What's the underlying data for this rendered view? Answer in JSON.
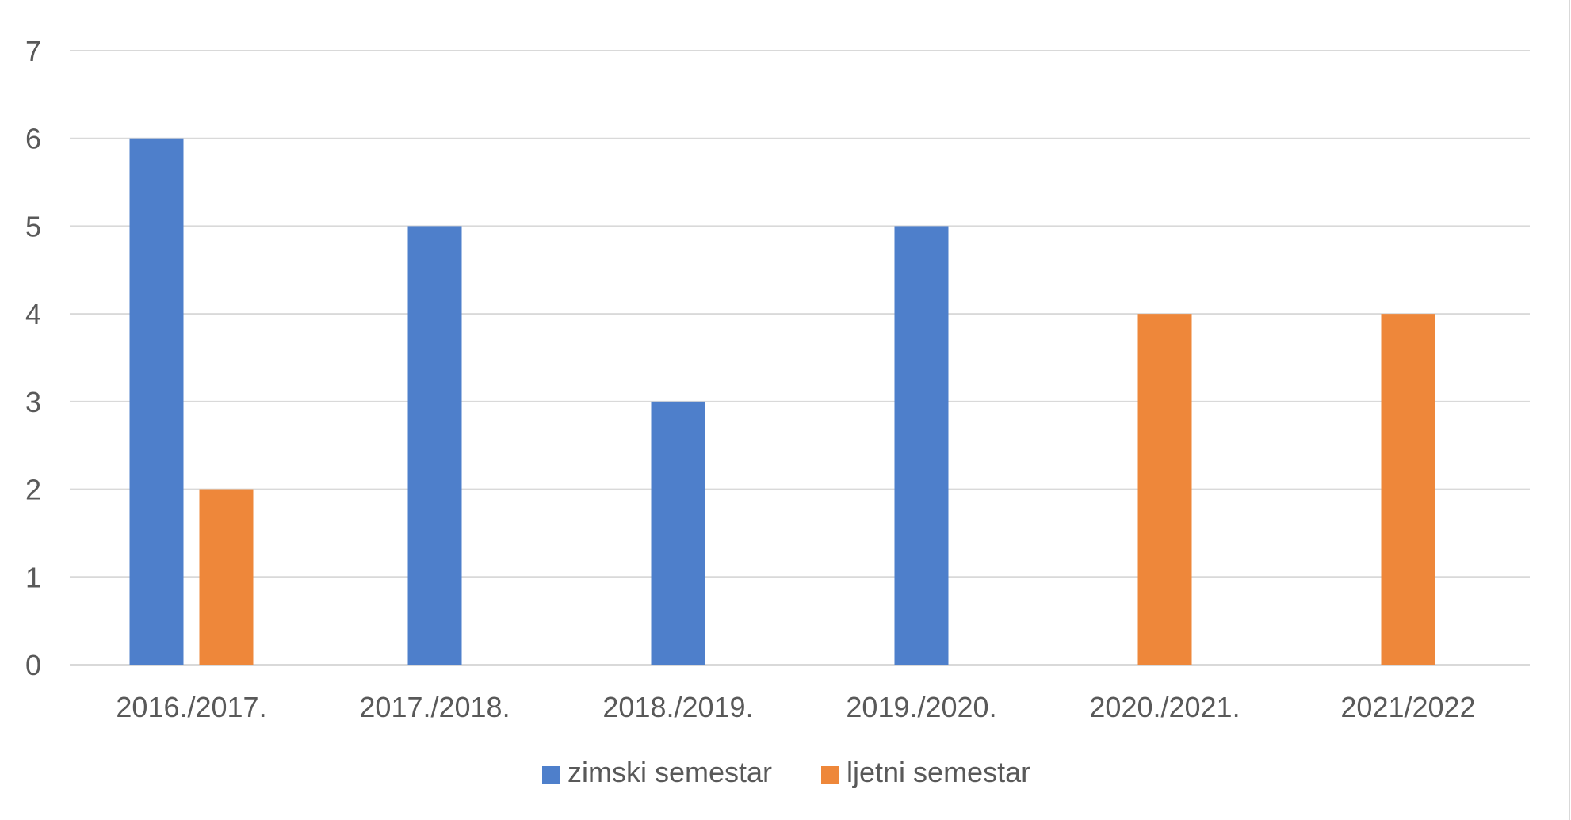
{
  "chart_data": {
    "type": "bar",
    "title": "",
    "xlabel": "",
    "ylabel": "",
    "categories": [
      "2016./2017.",
      "2017./2018.",
      "2018./2019.",
      "2019./2020.",
      "2020./2021.",
      "2021/2022"
    ],
    "ylim": [
      0,
      7
    ],
    "yticks": [
      "0",
      "1",
      "2",
      "3",
      "4",
      "5",
      "6",
      "7"
    ],
    "grid": true,
    "legend_position": "bottom",
    "series": [
      {
        "name": "zimski semestar",
        "color": "#4e7fcb",
        "values": [
          6,
          5,
          3,
          5,
          0,
          0
        ]
      },
      {
        "name": "ljetni semestar",
        "color": "#ee873a",
        "values": [
          2,
          0,
          0,
          0,
          4,
          4
        ]
      }
    ]
  }
}
